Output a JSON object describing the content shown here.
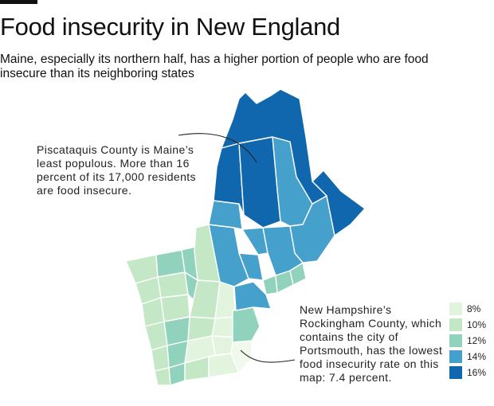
{
  "header": {
    "title": "Food insecurity in New England",
    "subtitle": "Maine, especially its northern half, has a higher portion of people who are food insecure than its neighboring states"
  },
  "annotations": {
    "piscataquis": "Piscataquis County is Maine’s least populous. More than 16 percent of its 17,000 residents are food insecure.",
    "rockingham": "New Hampshire’s Rockingham County, which contains the city of Portsmouth, has the lowest food insecurity rate on this map: 7.4 percent."
  },
  "legend": {
    "items": [
      {
        "label": "8%",
        "color": "#e3f4de"
      },
      {
        "label": "10%",
        "color": "#c4e8c5"
      },
      {
        "label": "12%",
        "color": "#91d2bd"
      },
      {
        "label": "14%",
        "color": "#45a0cc"
      },
      {
        "label": "16%",
        "color": "#1167ae"
      }
    ]
  },
  "map": {
    "boundary_color": "#ffffff",
    "leader_line_color": "#222222"
  }
}
